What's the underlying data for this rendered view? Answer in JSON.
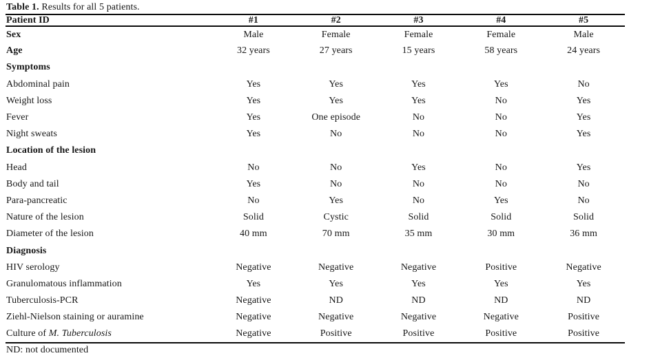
{
  "caption": {
    "label": "Table 1.",
    "text": " Results for all 5 patients."
  },
  "footnote": "ND: not documented",
  "table": {
    "header": {
      "label": "Patient ID",
      "columns": [
        "#1",
        "#2",
        "#3",
        "#4",
        "#5"
      ]
    },
    "rows": [
      {
        "label": "Sex",
        "bold": true,
        "values": [
          "Male",
          "Female",
          "Female",
          "Female",
          "Male"
        ]
      },
      {
        "label": "Age",
        "bold": true,
        "values": [
          "32 years",
          "27 years",
          "15 years",
          "58 years",
          "24 years"
        ]
      },
      {
        "label": "Symptoms",
        "bold": true,
        "section": true,
        "values": [
          "",
          "",
          "",
          "",
          ""
        ]
      },
      {
        "label": "Abdominal pain",
        "values": [
          "Yes",
          "Yes",
          "Yes",
          "Yes",
          "No"
        ]
      },
      {
        "label": "Weight loss",
        "values": [
          "Yes",
          "Yes",
          "Yes",
          "No",
          "Yes"
        ]
      },
      {
        "label": "Fever",
        "values": [
          "Yes",
          "One episode",
          "No",
          "No",
          "Yes"
        ]
      },
      {
        "label": "Night sweats",
        "values": [
          "Yes",
          "No",
          "No",
          "No",
          "Yes"
        ]
      },
      {
        "label": "Location of the lesion",
        "bold": true,
        "section": true,
        "values": [
          "",
          "",
          "",
          "",
          ""
        ]
      },
      {
        "label": "Head",
        "values": [
          "No",
          "No",
          "Yes",
          "No",
          "Yes"
        ]
      },
      {
        "label": "Body and tail",
        "values": [
          "Yes",
          "No",
          "No",
          "No",
          "No"
        ]
      },
      {
        "label": "Para-pancreatic",
        "values": [
          "No",
          "Yes",
          "No",
          "Yes",
          "No"
        ]
      },
      {
        "label": "Nature of the lesion",
        "values": [
          "Solid",
          "Cystic",
          "Solid",
          "Solid",
          "Solid"
        ]
      },
      {
        "label": "Diameter of the lesion",
        "values": [
          "40 mm",
          "70 mm",
          "35 mm",
          "30 mm",
          "36 mm"
        ]
      },
      {
        "label": "Diagnosis",
        "bold": true,
        "section": true,
        "values": [
          "",
          "",
          "",
          "",
          ""
        ]
      },
      {
        "label": "HIV serology",
        "values": [
          "Negative",
          "Negative",
          "Negative",
          "Positive",
          "Negative"
        ]
      },
      {
        "label": "Granulomatous inflammation",
        "values": [
          "Yes",
          "Yes",
          "Yes",
          "Yes",
          "Yes"
        ]
      },
      {
        "label": "Tuberculosis-PCR",
        "values": [
          "Negative",
          "ND",
          "ND",
          "ND",
          "ND"
        ]
      },
      {
        "label": "Ziehl-Nielson staining or auramine",
        "values": [
          "Negative",
          "Negative",
          "Negative",
          "Negative",
          "Positive"
        ]
      },
      {
        "label": "Culture of M. Tuberculosis",
        "label_parts": [
          {
            "text": "Culture of "
          },
          {
            "text": "M. Tuberculosis",
            "italic": true
          }
        ],
        "values": [
          "Negative",
          "Positive",
          "Positive",
          "Positive",
          "Positive"
        ]
      }
    ]
  }
}
